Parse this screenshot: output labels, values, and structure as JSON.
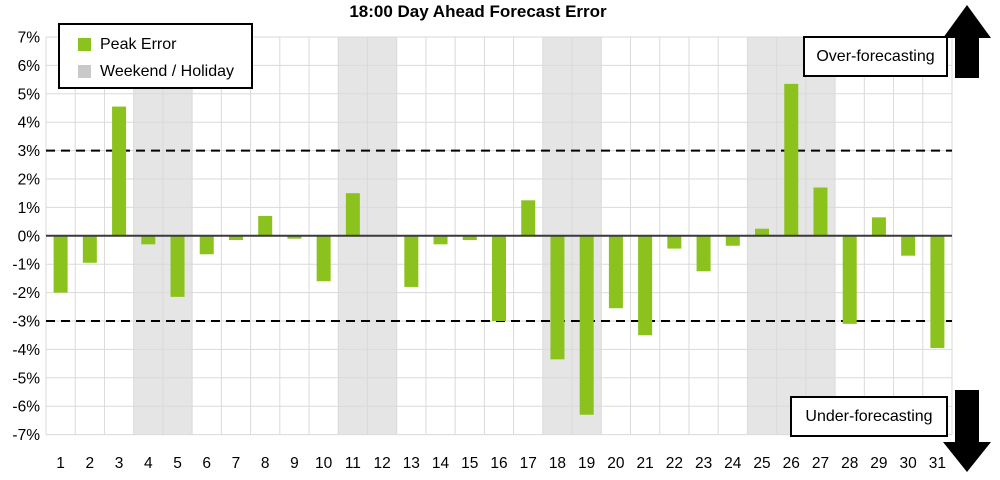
{
  "title": "18:00 Day Ahead Forecast Error",
  "legend": {
    "peak_error": "Peak Error",
    "weekend_holiday": "Weekend / Holiday"
  },
  "annotations": {
    "over": "Over-forecasting",
    "under": "Under-forecasting"
  },
  "colors": {
    "bar": "#8CC21E",
    "weekend_band": "#E5E5E5",
    "gridline": "#DADADA",
    "zero_line": "#3A3A3A",
    "threshold": "#000000",
    "arrow": "#000000"
  },
  "chart_data": {
    "type": "bar",
    "title": "18:00 Day Ahead Forecast Error",
    "series_name": "Peak Error",
    "categories": [
      1,
      2,
      3,
      4,
      5,
      6,
      7,
      8,
      9,
      10,
      11,
      12,
      13,
      14,
      15,
      16,
      17,
      18,
      19,
      20,
      21,
      22,
      23,
      24,
      25,
      26,
      27,
      28,
      29,
      30,
      31
    ],
    "values": [
      -2.0,
      -0.95,
      4.55,
      -0.3,
      -2.15,
      -0.65,
      -0.15,
      0.7,
      -0.1,
      -1.6,
      1.5,
      0,
      -1.8,
      -0.3,
      -0.15,
      -3.0,
      1.25,
      -4.35,
      -6.3,
      -2.55,
      -3.5,
      -0.45,
      -1.25,
      -0.35,
      0.25,
      5.35,
      1.7,
      -3.1,
      0.65,
      -0.7,
      -3.95
    ],
    "weekend_holiday_days": [
      4,
      5,
      11,
      12,
      18,
      19,
      25,
      26,
      27
    ],
    "threshold_lines": [
      3,
      -3
    ],
    "ylim": [
      -7,
      7
    ],
    "ytick_step": 1,
    "ytick_suffix": "%",
    "xlabel": "",
    "ylabel": "",
    "grid": true,
    "legend_position": "top-left"
  }
}
